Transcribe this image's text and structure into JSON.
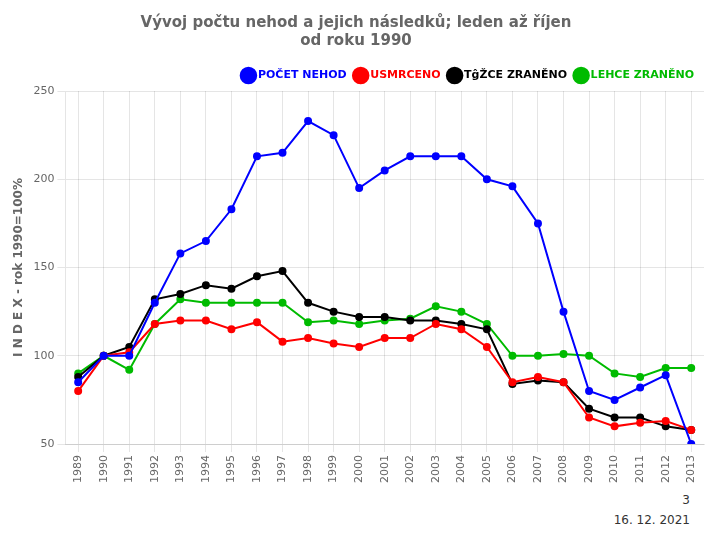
{
  "chart_data": {
    "type": "line",
    "title": "Vývoj počtu nehod a jejich následků; leden až říjen\nod roku 1990",
    "ylabel": "I N D E X - rok 1990=100%",
    "x": [
      1989,
      1990,
      1991,
      1992,
      1993,
      1994,
      1995,
      1996,
      1997,
      1998,
      1999,
      2000,
      2001,
      2002,
      2003,
      2004,
      2005,
      2006,
      2007,
      2008,
      2009,
      2010,
      2011,
      2012,
      2013
    ],
    "series": [
      {
        "name": "POČET NEHOD",
        "color": "#0000ff",
        "marker": "circle",
        "line_style": "solid",
        "values": [
          85,
          100,
          100,
          130,
          158,
          165,
          183,
          213,
          215,
          233,
          225,
          195,
          205,
          213,
          213,
          213,
          200,
          196,
          175,
          125,
          80,
          75,
          82,
          89,
          50
        ]
      },
      {
        "name": "USMRCENO",
        "color": "#ff0000",
        "marker": "circle",
        "line_style": "solid",
        "values": [
          80,
          100,
          102,
          118,
          120,
          120,
          115,
          119,
          108,
          110,
          107,
          105,
          110,
          110,
          118,
          115,
          105,
          85,
          88,
          85,
          65,
          60,
          62,
          63,
          58
        ]
      },
      {
        "name": "TĝŽCE ZRANĚNO",
        "color": "#000000",
        "marker": "circle",
        "line_style": "solid",
        "values": [
          88,
          100,
          105,
          132,
          135,
          140,
          138,
          145,
          148,
          130,
          125,
          122,
          122,
          120,
          120,
          118,
          115,
          84,
          86,
          85,
          70,
          65,
          65,
          60,
          58
        ]
      },
      {
        "name": "LEHCE ZRANĚNO",
        "color": "#00bb00",
        "marker": "circle",
        "line_style": "solid",
        "values": [
          90,
          100,
          92,
          118,
          132,
          130,
          130,
          130,
          130,
          119,
          120,
          118,
          120,
          121,
          128,
          125,
          118,
          100,
          100,
          101,
          100,
          90,
          88,
          93,
          93
        ]
      }
    ],
    "xlim": [
      1988.5,
      2013.5
    ],
    "xticks": [
      1989,
      1990,
      1991,
      1992,
      1993,
      1994,
      1995,
      1996,
      1997,
      1998,
      1999,
      2000,
      2001,
      2002,
      2003,
      2004,
      2005,
      2006,
      2007,
      2008,
      2009,
      2010,
      2011,
      2012,
      2013
    ],
    "ylim": [
      50,
      250
    ],
    "yticks": [
      50,
      100,
      150,
      200,
      250
    ],
    "grid": true,
    "legend": "upper right",
    "annotations": [
      "3",
      "16. 12. 2021"
    ]
  }
}
